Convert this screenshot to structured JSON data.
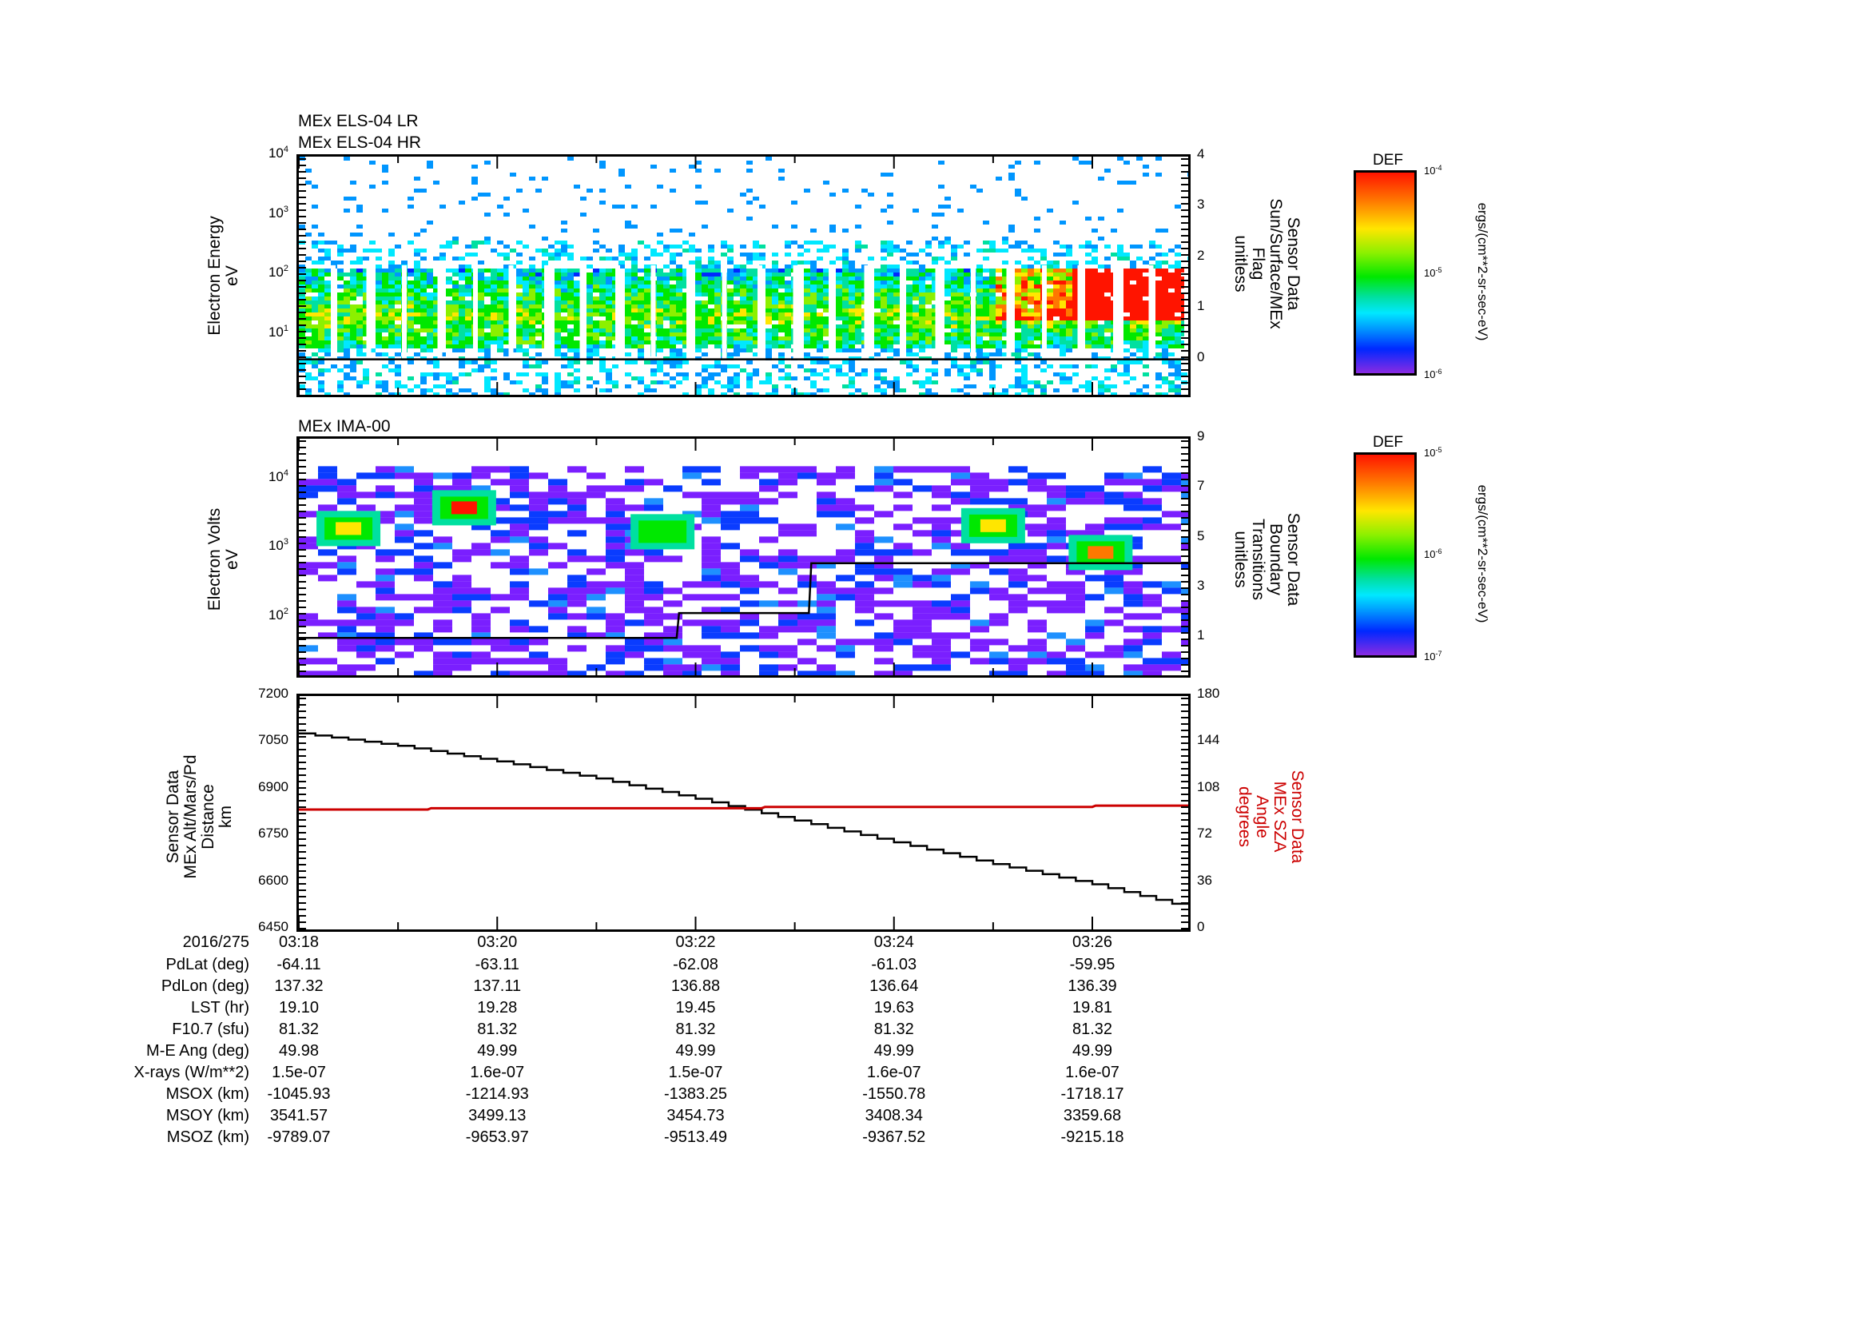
{
  "chart_data": [
    {
      "type": "heatmap",
      "id": "els",
      "titles": [
        "MEx ELS-04 LR",
        "MEx ELS-04 HR"
      ],
      "ylabel": [
        "Electron Energy",
        "eV"
      ],
      "yscale": "log",
      "ylim": [
        1,
        10000
      ],
      "yticks": [
        {
          "base": "10",
          "exp": "1",
          "v": 10
        },
        {
          "base": "10",
          "exp": "2",
          "v": 100
        },
        {
          "base": "10",
          "exp": "3",
          "v": 1000
        },
        {
          "base": "10",
          "exp": "4",
          "v": 10000
        }
      ],
      "y2label": [
        "Sensor Data",
        "Sun/Surface/MEx",
        "Flag",
        "unitless"
      ],
      "y2lim": [
        -0.7,
        4
      ],
      "y2ticks": [
        "0",
        "1",
        "2",
        "3",
        "4"
      ],
      "overlay_line": {
        "name": "Sun/Surface/MEx Flag",
        "value": 0,
        "color": "#000000"
      },
      "colorbar": {
        "title": "DEF",
        "min": "10-6",
        "max": "10-4",
        "ticks": [
          {
            "base": "10",
            "exp": "-4"
          },
          {
            "base": "10",
            "exp": "-5"
          },
          {
            "base": "10",
            "exp": "-6"
          }
        ],
        "units": "ergs/(cm**2-sr-sec-eV)"
      },
      "description": "Electron spectrogram: broad yellow-green band 7-150 eV across interval, saturating red 20-130 eV after ~03:25:00; vertical data gaps roughly every 20 s"
    },
    {
      "type": "heatmap",
      "id": "ima",
      "titles": [
        "MEx IMA-00"
      ],
      "ylabel": [
        "Electron Volts",
        "eV"
      ],
      "yscale": "log",
      "ylim": [
        15,
        40000
      ],
      "yticks": [
        {
          "base": "10",
          "exp": "2",
          "v": 100
        },
        {
          "base": "10",
          "exp": "3",
          "v": 1000
        },
        {
          "base": "10",
          "exp": "4",
          "v": 10000
        }
      ],
      "y2label": [
        "Sensor Data",
        "Boundary",
        "Transitions",
        "unitless"
      ],
      "y2lim": [
        -0.5,
        9
      ],
      "y2ticks": [
        "1",
        "3",
        "5",
        "7",
        "9"
      ],
      "overlay_line": {
        "name": "Boundary Transitions",
        "steps": [
          {
            "t": "03:18:00",
            "v": 1
          },
          {
            "t": "03:21:50",
            "v": 2
          },
          {
            "t": "03:23:10",
            "v": 4
          },
          {
            "t": "03:26:58",
            "v": 4
          }
        ],
        "color": "#000000"
      },
      "hotspots": [
        {
          "t": "03:18:30",
          "eV": 2000,
          "level": "yellow"
        },
        {
          "t": "03:19:40",
          "eV": 4000,
          "level": "red"
        },
        {
          "t": "03:21:40",
          "eV": 1800,
          "level": "green"
        },
        {
          "t": "03:25:00",
          "eV": 2200,
          "level": "yellow"
        },
        {
          "t": "03:26:05",
          "eV": 900,
          "level": "orange"
        }
      ],
      "colorbar": {
        "title": "DEF",
        "min": "10-7",
        "max": "10-5",
        "ticks": [
          {
            "base": "10",
            "exp": "-5"
          },
          {
            "base": "10",
            "exp": "-6"
          },
          {
            "base": "10",
            "exp": "-7"
          }
        ],
        "units": "ergs/(cm**2-sr-sec-eV)"
      }
    },
    {
      "type": "line",
      "id": "orbit",
      "ylabel": [
        "Sensor Data",
        "MEx Alt/Mars/Pd",
        "Distance",
        "km"
      ],
      "ylim": [
        6450,
        7200
      ],
      "yticks": [
        "7200",
        "7050",
        "6900",
        "6750",
        "6600",
        "6450"
      ],
      "y2label": [
        "Sensor Data",
        "MEx SZA",
        "Angle",
        "degrees"
      ],
      "y2lim": [
        0,
        180
      ],
      "y2ticks": [
        "180",
        "144",
        "108",
        "72",
        "36",
        "0"
      ],
      "series": [
        {
          "name": "MEx Alt/Mars/Pd Distance (km)",
          "axis": "left",
          "color": "#000000",
          "x": [
            "03:18:00",
            "03:19:00",
            "03:20:00",
            "03:21:00",
            "03:22:00",
            "03:23:00",
            "03:24:00",
            "03:25:00",
            "03:26:00",
            "03:26:58"
          ],
          "values": [
            7080,
            7040,
            6990,
            6935,
            6870,
            6800,
            6730,
            6660,
            6595,
            6520
          ]
        },
        {
          "name": "MEx SZA Angle (deg)",
          "axis": "right",
          "color": "#cc0000",
          "x": [
            "03:18:00",
            "03:19:18",
            "03:19:20",
            "03:22:40",
            "03:22:42",
            "03:26:00",
            "03:26:02",
            "03:26:58"
          ],
          "values": [
            92.5,
            92.5,
            93.5,
            93.5,
            94.5,
            94.5,
            95.5,
            95.5
          ]
        }
      ]
    }
  ],
  "xaxis": {
    "date": "2016/275",
    "ticks": [
      "03:18",
      "03:20",
      "03:22",
      "03:24",
      "03:26"
    ],
    "start": "03:18:00",
    "end": "03:26:58"
  },
  "ephemeris": {
    "rows": [
      {
        "label": "PdLat (deg)",
        "values": [
          "-64.11",
          "-63.11",
          "-62.08",
          "-61.03",
          "-59.95"
        ]
      },
      {
        "label": "PdLon (deg)",
        "values": [
          "137.32",
          "137.11",
          "136.88",
          "136.64",
          "136.39"
        ]
      },
      {
        "label": "LST (hr)",
        "values": [
          "19.10",
          "19.28",
          "19.45",
          "19.63",
          "19.81"
        ]
      },
      {
        "label": "F10.7 (sfu)",
        "values": [
          "81.32",
          "81.32",
          "81.32",
          "81.32",
          "81.32"
        ]
      },
      {
        "label": "M-E Ang (deg)",
        "values": [
          "49.98",
          "49.99",
          "49.99",
          "49.99",
          "49.99"
        ]
      },
      {
        "label": "X-rays (W/m**2)",
        "values": [
          "1.5e-07",
          "1.6e-07",
          "1.5e-07",
          "1.6e-07",
          "1.6e-07"
        ]
      },
      {
        "label": "MSOX (km)",
        "values": [
          "-1045.93",
          "-1214.93",
          "-1383.25",
          "-1550.78",
          "-1718.17"
        ]
      },
      {
        "label": "MSOY (km)",
        "values": [
          "3541.57",
          "3499.13",
          "3454.73",
          "3408.34",
          "3359.68"
        ]
      },
      {
        "label": "MSOZ (km)",
        "values": [
          "-9789.07",
          "-9653.97",
          "-9513.49",
          "-9367.52",
          "-9215.18"
        ]
      }
    ]
  },
  "colors": {
    "sza_line": "#cc0000",
    "frame": "#000000"
  }
}
